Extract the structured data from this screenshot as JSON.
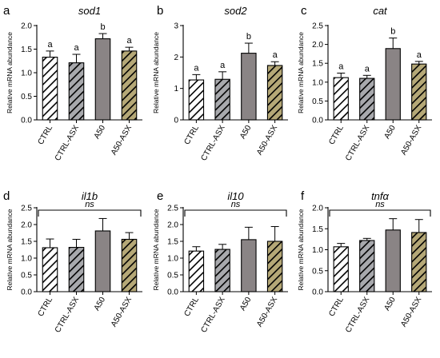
{
  "categories": [
    "CTRL",
    "CTRL-ASX",
    "A50",
    "A50-ASX"
  ],
  "ylabel": "Relative mRNA abundance",
  "colors": {
    "CTRL": "#ffffff",
    "CTRL-ASX": "#a8a9ad",
    "A50": "#8a8485",
    "A50-ASX": "#b5a877",
    "axis": "#000000"
  },
  "hatched": [
    "CTRL",
    "CTRL-ASX",
    "A50-ASX"
  ],
  "chart_data": [
    {
      "type": "bar",
      "panel": "a",
      "title": "sod1",
      "categories": [
        "CTRL",
        "CTRL-ASX",
        "A50",
        "A50-ASX"
      ],
      "values": [
        1.33,
        1.21,
        1.72,
        1.46
      ],
      "errors": [
        0.13,
        0.18,
        0.11,
        0.08
      ],
      "ylim": [
        0,
        2.0
      ],
      "yticks": [
        0.0,
        0.5,
        1.0,
        1.5,
        2.0
      ],
      "letters": [
        "a",
        "a",
        "b",
        "a"
      ]
    },
    {
      "type": "bar",
      "panel": "b",
      "title": "sod2",
      "categories": [
        "CTRL",
        "CTRL-ASX",
        "A50",
        "A50-ASX"
      ],
      "values": [
        1.27,
        1.29,
        2.12,
        1.73
      ],
      "errors": [
        0.17,
        0.24,
        0.32,
        0.12
      ],
      "ylim": [
        0,
        3
      ],
      "yticks": [
        0,
        1,
        2,
        3
      ],
      "letters": [
        "a",
        "a",
        "b",
        "a"
      ]
    },
    {
      "type": "bar",
      "panel": "c",
      "title": "cat",
      "categories": [
        "CTRL",
        "CTRL-ASX",
        "A50",
        "A50-ASX"
      ],
      "values": [
        1.12,
        1.1,
        1.89,
        1.48
      ],
      "errors": [
        0.12,
        0.08,
        0.28,
        0.07
      ],
      "ylim": [
        0,
        2.5
      ],
      "yticks": [
        0.0,
        0.5,
        1.0,
        1.5,
        2.0,
        2.5
      ],
      "letters": [
        "a",
        "a",
        "b",
        "a"
      ]
    },
    {
      "type": "bar",
      "panel": "d",
      "title": "il1b",
      "categories": [
        "CTRL",
        "CTRL-ASX",
        "A50",
        "A50-ASX"
      ],
      "values": [
        1.31,
        1.32,
        1.81,
        1.56
      ],
      "errors": [
        0.26,
        0.24,
        0.37,
        0.2
      ],
      "ylim": [
        0,
        2.5
      ],
      "yticks": [
        0.0,
        0.5,
        1.0,
        1.5,
        2.0,
        2.5
      ],
      "annotation": "ns"
    },
    {
      "type": "bar",
      "panel": "e",
      "title": "il10",
      "categories": [
        "CTRL",
        "CTRL-ASX",
        "A50",
        "A50-ASX"
      ],
      "values": [
        1.21,
        1.26,
        1.55,
        1.5
      ],
      "errors": [
        0.13,
        0.15,
        0.37,
        0.44
      ],
      "ylim": [
        0,
        2.5
      ],
      "yticks": [
        0.0,
        0.5,
        1.0,
        1.5,
        2.0,
        2.5
      ],
      "annotation": "ns"
    },
    {
      "type": "bar",
      "panel": "f",
      "title": "tnfα",
      "categories": [
        "CTRL",
        "CTRL-ASX",
        "A50",
        "A50-ASX"
      ],
      "values": [
        1.07,
        1.22,
        1.47,
        1.41
      ],
      "errors": [
        0.08,
        0.05,
        0.27,
        0.31
      ],
      "ylim": [
        0,
        2.0
      ],
      "yticks": [
        0.0,
        0.5,
        1.0,
        1.5,
        2.0
      ],
      "annotation": "ns"
    }
  ]
}
